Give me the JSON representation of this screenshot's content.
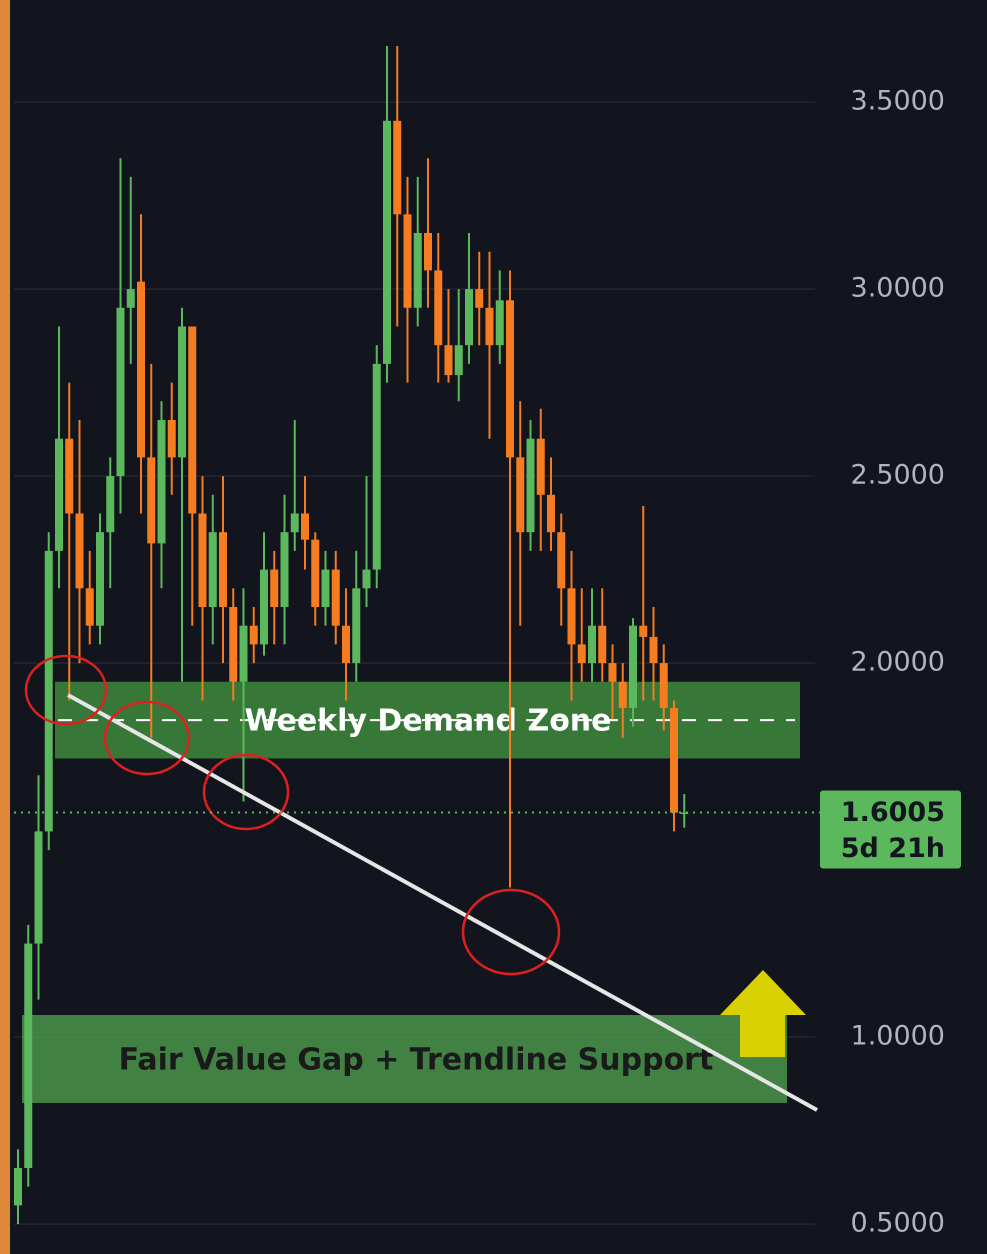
{
  "chart_data": {
    "type": "candlestick",
    "up_color": "#5cb85c",
    "down_color": "#f57c20",
    "ylim": [
      0.42,
      3.773
    ],
    "yticks": [
      {
        "value": 0.5,
        "label": "0.5000"
      },
      {
        "value": 1,
        "label": "1.0000"
      },
      {
        "value": 2,
        "label": "2.0000"
      },
      {
        "value": 2.5,
        "label": "2.5000"
      },
      {
        "value": 3,
        "label": "3.0000"
      },
      {
        "value": 3.5,
        "label": "3.5000"
      }
    ],
    "grid": true,
    "open": [
      0.55,
      0.65,
      1.25,
      1.55,
      2.3,
      2.6,
      2.4,
      2.2,
      2.1,
      2.35,
      2.5,
      2.95,
      3.02,
      2.55,
      2.32,
      2.65,
      2.55,
      2.9,
      2.4,
      2.15,
      2.35,
      2.15,
      1.95,
      2.1,
      2.05,
      2.25,
      2.15,
      2.35,
      2.4,
      2.33,
      2.15,
      2.25,
      2.1,
      2.0,
      2.2,
      2.25,
      2.8,
      3.45,
      3.2,
      2.95,
      3.15,
      3.05,
      2.85,
      2.77,
      2.85,
      3.0,
      2.95,
      2.85,
      2.97,
      2.55,
      2.35,
      2.6,
      2.45,
      2.35,
      2.2,
      2.05,
      2.0,
      2.1,
      2.0,
      1.95,
      1.88,
      2.1,
      2.07,
      2.0,
      1.88,
      1.6
    ],
    "high": [
      0.7,
      1.3,
      1.7,
      2.35,
      2.9,
      2.75,
      2.65,
      2.3,
      2.4,
      2.55,
      3.35,
      3.3,
      3.2,
      2.8,
      2.7,
      2.75,
      2.95,
      2.9,
      2.5,
      2.45,
      2.5,
      2.2,
      2.2,
      2.15,
      2.35,
      2.3,
      2.45,
      2.65,
      2.5,
      2.35,
      2.3,
      2.3,
      2.2,
      2.3,
      2.5,
      2.85,
      3.65,
      3.65,
      3.3,
      3.3,
      3.35,
      3.15,
      3.0,
      3.0,
      3.15,
      3.1,
      3.1,
      3.05,
      3.05,
      2.7,
      2.65,
      2.68,
      2.55,
      2.4,
      2.3,
      2.2,
      2.2,
      2.2,
      2.05,
      2.0,
      2.12,
      2.42,
      2.15,
      2.05,
      1.9,
      1.65
    ],
    "low": [
      0.5,
      0.6,
      1.1,
      1.5,
      2.2,
      1.9,
      2.0,
      2.05,
      2.05,
      2.2,
      2.4,
      2.8,
      2.4,
      1.8,
      2.2,
      2.45,
      1.95,
      2.1,
      1.9,
      2.05,
      2.0,
      1.9,
      1.63,
      2.0,
      2.02,
      2.05,
      2.05,
      2.3,
      2.25,
      2.1,
      2.1,
      2.05,
      1.9,
      1.95,
      2.15,
      2.2,
      2.75,
      2.9,
      2.75,
      2.9,
      2.95,
      2.75,
      2.75,
      2.7,
      2.8,
      2.85,
      2.6,
      2.8,
      1.4,
      2.1,
      2.3,
      2.3,
      2.3,
      2.1,
      1.9,
      1.95,
      1.95,
      1.95,
      1.85,
      1.8,
      1.83,
      1.9,
      1.9,
      1.82,
      1.55,
      1.56
    ],
    "close": [
      0.65,
      1.25,
      1.55,
      2.3,
      2.6,
      2.4,
      2.2,
      2.1,
      2.35,
      2.5,
      2.95,
      3.0,
      2.55,
      2.32,
      2.65,
      2.55,
      2.9,
      2.4,
      2.15,
      2.35,
      2.15,
      1.95,
      2.1,
      2.05,
      2.25,
      2.15,
      2.35,
      2.4,
      2.33,
      2.15,
      2.25,
      2.1,
      2.0,
      2.2,
      2.25,
      2.8,
      3.45,
      3.2,
      2.95,
      3.15,
      3.05,
      2.85,
      2.77,
      2.85,
      3.0,
      2.95,
      2.85,
      2.97,
      2.55,
      2.35,
      2.6,
      2.45,
      2.35,
      2.2,
      2.05,
      2.0,
      2.1,
      2.0,
      1.95,
      1.88,
      2.1,
      2.07,
      2.0,
      1.88,
      1.6,
      1.6005
    ],
    "last_price": 1.6005,
    "countdown": "5d 21h",
    "zones": [
      {
        "label": "Weekly Demand Zone",
        "range": [
          1.745,
          1.95
        ],
        "color": "#3f8f3f"
      },
      {
        "label": "Fair Value Gap + Trendline Support",
        "range": [
          0.824,
          1.059
        ],
        "color": "#4d9a4d"
      }
    ]
  }
}
